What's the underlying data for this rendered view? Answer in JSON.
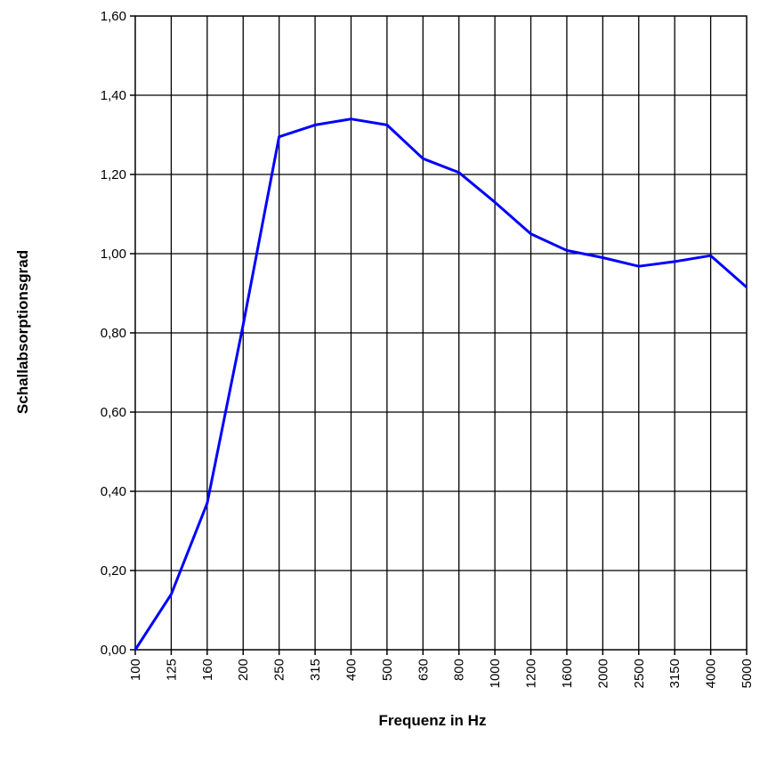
{
  "chart_data": {
    "type": "line",
    "title": "",
    "xlabel": "Frequenz in Hz",
    "ylabel": "Schallabsorptionsgrad",
    "categories": [
      "100",
      "125",
      "160",
      "200",
      "250",
      "315",
      "400",
      "500",
      "630",
      "800",
      "1000",
      "1200",
      "1600",
      "2000",
      "2500",
      "3150",
      "4000",
      "5000"
    ],
    "series": [
      {
        "name": "",
        "color": "#0000ff",
        "values": [
          0.0,
          0.14,
          0.37,
          0.82,
          1.295,
          1.325,
          1.34,
          1.325,
          1.24,
          1.205,
          1.13,
          1.05,
          1.008,
          0.99,
          0.968,
          0.98,
          0.995,
          0.915
        ]
      }
    ],
    "ylim": [
      0,
      1.6
    ],
    "yticks": [
      "0,00",
      "0,20",
      "0,40",
      "0,60",
      "0,80",
      "1,00",
      "1,20",
      "1,40",
      "1,60"
    ],
    "grid": true,
    "legend": "none"
  }
}
